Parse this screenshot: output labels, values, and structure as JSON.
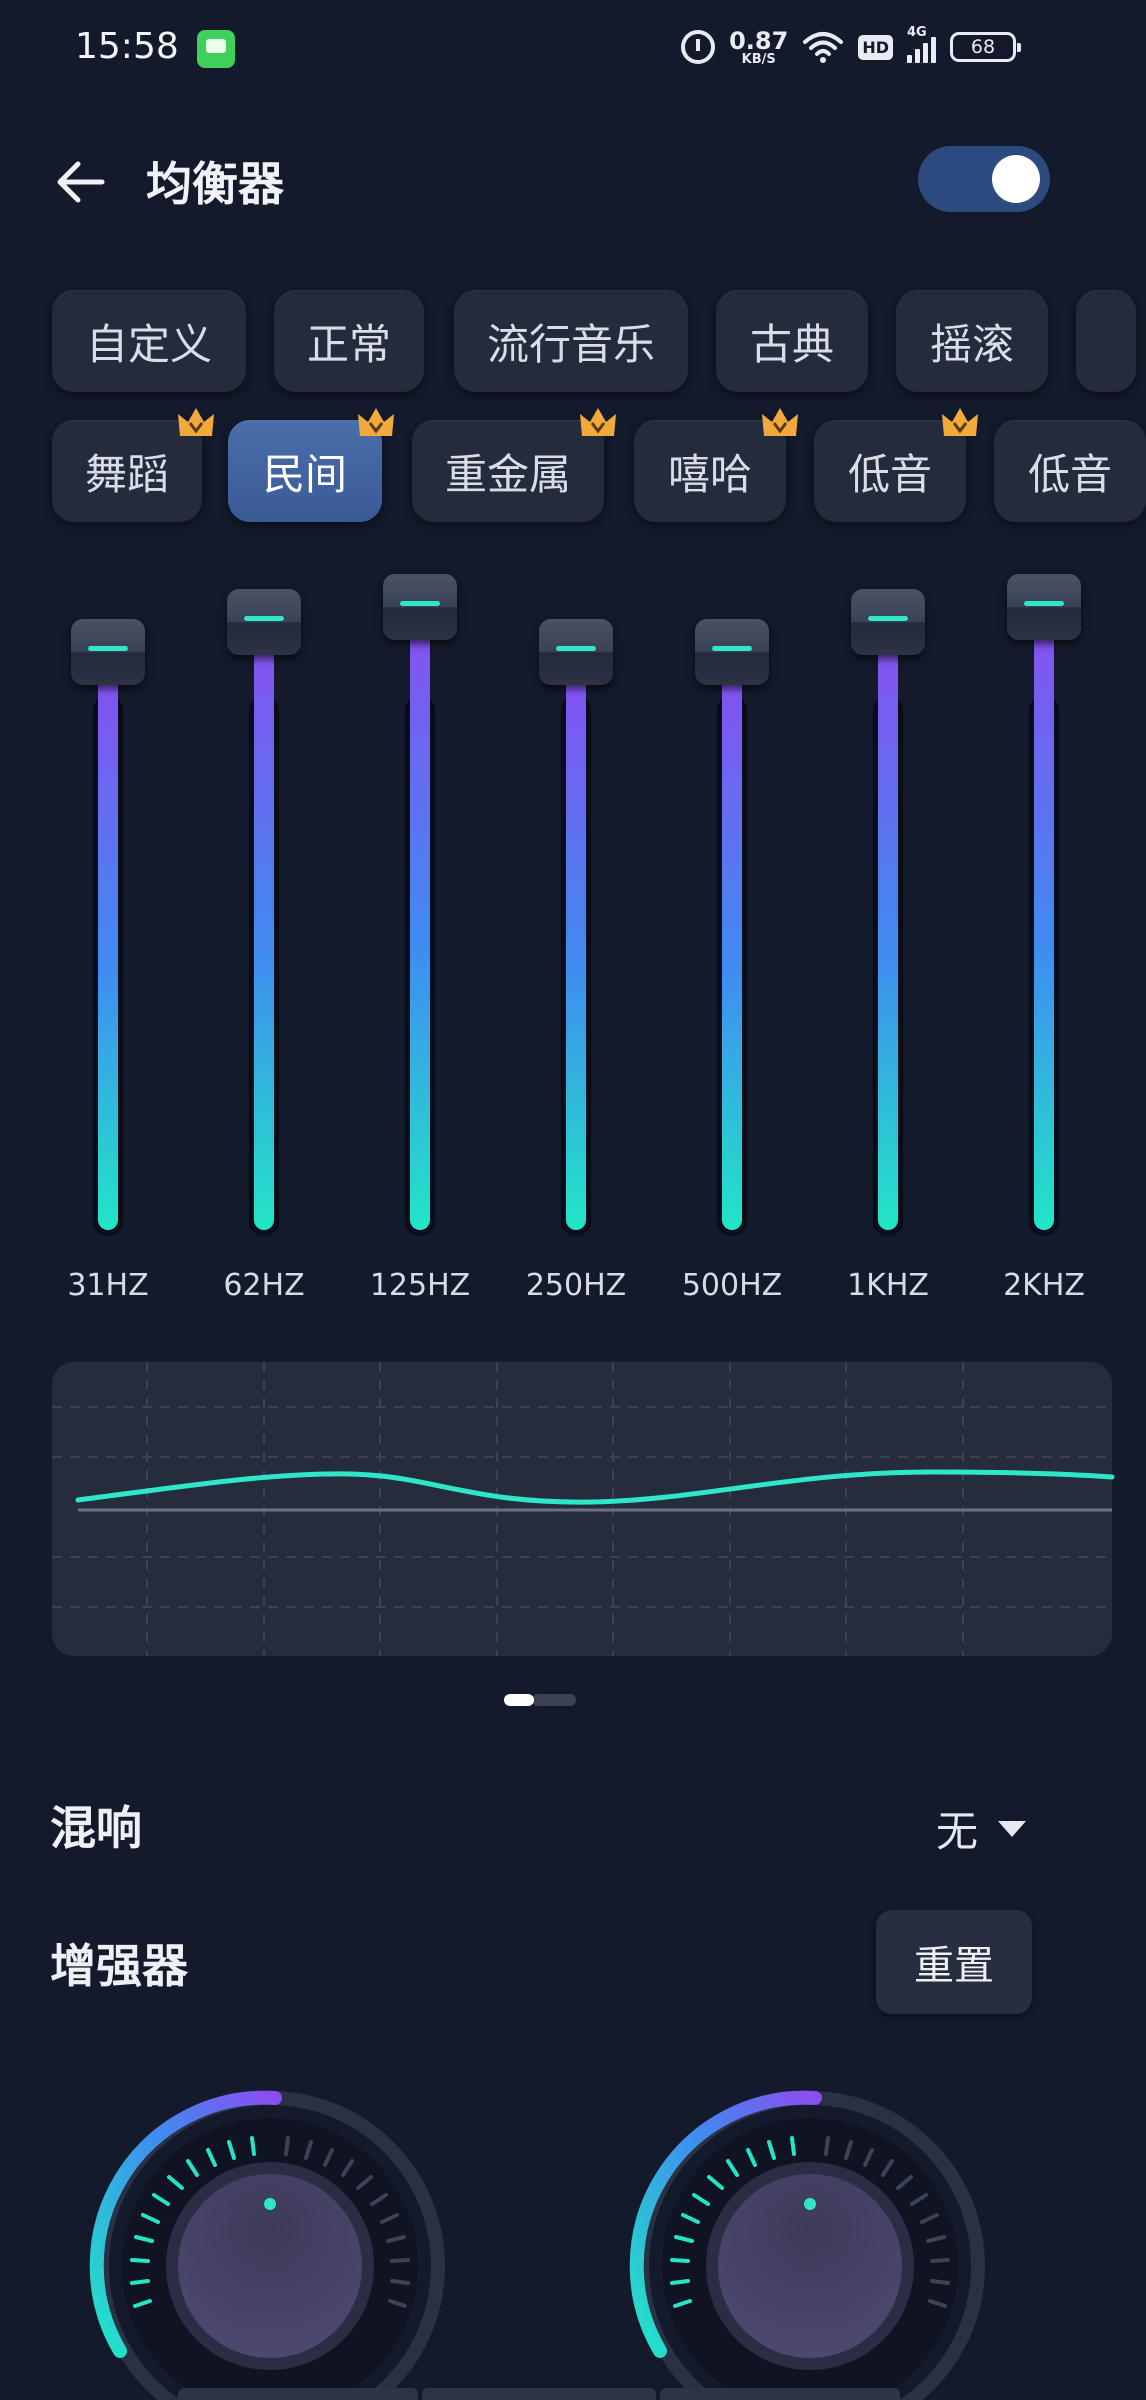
{
  "status_bar": {
    "time": "15:58",
    "net_speed_value": "0.87",
    "net_speed_unit": "KB/S",
    "hd_label": "HD",
    "network_label": "4G",
    "battery": "68"
  },
  "header": {
    "title": "均衡器",
    "toggle_on": true
  },
  "presets_row1": [
    {
      "label": "自定义",
      "premium": false,
      "active": false
    },
    {
      "label": "正常",
      "premium": false,
      "active": false
    },
    {
      "label": "流行音乐",
      "premium": false,
      "active": false
    },
    {
      "label": "古典",
      "premium": false,
      "active": false
    },
    {
      "label": "摇滚",
      "premium": false,
      "active": false
    }
  ],
  "presets_row2": [
    {
      "label": "舞蹈",
      "premium": true,
      "active": false
    },
    {
      "label": "民间",
      "premium": true,
      "active": true
    },
    {
      "label": "重金属",
      "premium": true,
      "active": false
    },
    {
      "label": "嘻哈",
      "premium": true,
      "active": false
    },
    {
      "label": "低音",
      "premium": true,
      "active": false
    },
    {
      "label": "低音",
      "premium": false,
      "active": false
    }
  ],
  "bands": [
    {
      "value": "0",
      "freq": "31HZ",
      "level": 0
    },
    {
      "value": "2",
      "freq": "62HZ",
      "level": 2
    },
    {
      "value": "3",
      "freq": "125HZ",
      "level": 3
    },
    {
      "value": "0",
      "freq": "250HZ",
      "level": 0
    },
    {
      "value": "0",
      "freq": "500HZ",
      "level": 0
    },
    {
      "value": "2",
      "freq": "1KHZ",
      "level": 2
    },
    {
      "value": "3",
      "freq": "2KHZ",
      "level": 3
    }
  ],
  "reverb": {
    "label": "混响",
    "value": "无"
  },
  "enhancer": {
    "label": "增强器",
    "reset_label": "重置"
  },
  "colors": {
    "background": "#131a2b",
    "accent_teal": "#22e6c6",
    "accent_purple": "#8b4df0",
    "active_chip": "#3f63a3"
  }
}
